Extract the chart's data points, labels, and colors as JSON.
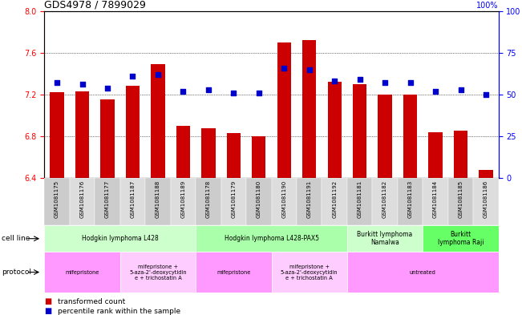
{
  "title": "GDS4978 / 7899029",
  "samples": [
    "GSM1081175",
    "GSM1081176",
    "GSM1081177",
    "GSM1081187",
    "GSM1081188",
    "GSM1081189",
    "GSM1081178",
    "GSM1081179",
    "GSM1081180",
    "GSM1081190",
    "GSM1081191",
    "GSM1081192",
    "GSM1081181",
    "GSM1081182",
    "GSM1081183",
    "GSM1081184",
    "GSM1081185",
    "GSM1081186"
  ],
  "bar_values": [
    7.22,
    7.23,
    7.15,
    7.28,
    7.49,
    6.9,
    6.88,
    6.83,
    6.8,
    7.7,
    7.72,
    7.32,
    7.3,
    7.2,
    7.2,
    6.84,
    6.85,
    6.48
  ],
  "percentile_values": [
    57,
    56,
    54,
    61,
    62,
    52,
    53,
    51,
    51,
    66,
    65,
    58,
    59,
    57,
    57,
    52,
    53,
    50
  ],
  "bar_color": "#cc0000",
  "percentile_color": "#0000cc",
  "ymin": 6.4,
  "ymax": 8.0,
  "yticks_left": [
    6.4,
    6.8,
    7.2,
    7.6,
    8.0
  ],
  "right_yticks": [
    0,
    25,
    50,
    75,
    100
  ],
  "cell_line_groups": [
    {
      "label": "Hodgkin lymphoma L428",
      "start": 0,
      "end": 5,
      "color": "#ccffcc"
    },
    {
      "label": "Hodgkin lymphoma L428-PAX5",
      "start": 6,
      "end": 11,
      "color": "#aaffaa"
    },
    {
      "label": "Burkitt lymphoma\nNamalwa",
      "start": 12,
      "end": 14,
      "color": "#ccffcc"
    },
    {
      "label": "Burkitt\nlymphoma Raji",
      "start": 15,
      "end": 17,
      "color": "#66ff66"
    }
  ],
  "protocol_groups": [
    {
      "label": "mifepristone",
      "start": 0,
      "end": 2,
      "color": "#ff99ff"
    },
    {
      "label": "mifepristone +\n5-aza-2'-deoxycytidin\ne + trichostatin A",
      "start": 3,
      "end": 5,
      "color": "#ffccff"
    },
    {
      "label": "mifepristone",
      "start": 6,
      "end": 8,
      "color": "#ff99ff"
    },
    {
      "label": "mifepristone +\n5-aza-2'-deoxycytidin\ne + trichostatin A",
      "start": 9,
      "end": 11,
      "color": "#ffccff"
    },
    {
      "label": "untreated",
      "start": 12,
      "end": 17,
      "color": "#ff99ff"
    }
  ],
  "xtick_colors": [
    "#cccccc",
    "#dddddd",
    "#cccccc",
    "#dddddd",
    "#cccccc",
    "#dddddd",
    "#cccccc",
    "#dddddd",
    "#cccccc",
    "#dddddd",
    "#cccccc",
    "#dddddd",
    "#cccccc",
    "#dddddd",
    "#cccccc",
    "#dddddd",
    "#cccccc",
    "#dddddd"
  ]
}
